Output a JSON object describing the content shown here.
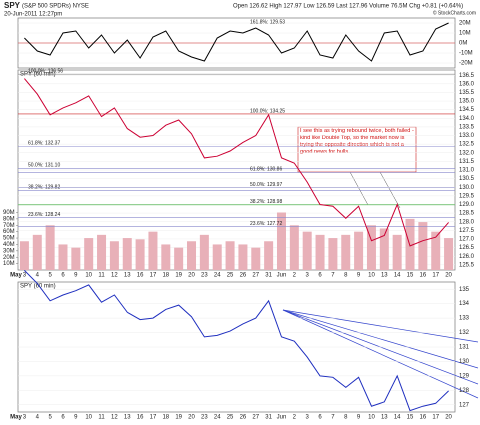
{
  "header": {
    "symbol": "SPY",
    "name": "(S&P 500 SPDRs) NYSE",
    "date": "20-Jun-2011 12:27pm",
    "quote": "Open 126.62 High 127.97 Low 126.59 Last 127.96 Volume 76.5M Chg +0.81 (+0.64%)",
    "credit": "© StockCharts.com"
  },
  "chart_data": [
    {
      "type": "line",
      "annotations": [
        {
          "label": "161.8%: 129.53"
        }
      ],
      "categories": [
        "3",
        "4",
        "5",
        "6",
        "9",
        "10",
        "11",
        "12",
        "13",
        "16",
        "17",
        "18",
        "19",
        "20",
        "23",
        "24",
        "25",
        "26",
        "27",
        "31",
        "Jun",
        "2",
        "3",
        "6",
        "7",
        "8",
        "9",
        "10",
        "13",
        "14",
        "15",
        "16",
        "17",
        "20"
      ],
      "series": [
        {
          "color": "#000000",
          "values": [
            5,
            -8,
            -12,
            10,
            12,
            -5,
            8,
            -10,
            3,
            -15,
            6,
            12,
            -8,
            -14,
            -18,
            5,
            12,
            10,
            15,
            8,
            -10,
            -5,
            12,
            -12,
            -15,
            8,
            -8,
            -18,
            10,
            12,
            -12,
            -8,
            14,
            20
          ]
        }
      ],
      "ylim": [
        -25,
        25
      ],
      "yticks": [
        {
          "value": 20,
          "label": "20M"
        },
        {
          "value": 10,
          "label": "10M"
        },
        {
          "value": 0,
          "label": "0M"
        },
        {
          "value": -10,
          "label": "-10M"
        },
        {
          "value": -20,
          "label": "-20M"
        }
      ]
    },
    {
      "type": "line",
      "title": "SPY (60 min)",
      "month": "May",
      "annotations": [
        {
          "label": "100.0%: 136.56",
          "value": 136.56,
          "color": "#888888"
        },
        {
          "label": "100.0%: 134.25",
          "value": 134.25,
          "color": "#cc2222"
        },
        {
          "label": "61.8%: 132.37",
          "value": 132.37,
          "color": "#8888cc"
        },
        {
          "label": "50.0%: 131.10",
          "value": 131.1,
          "color": "#8888cc"
        },
        {
          "label": "38.2%: 129.82",
          "value": 129.82,
          "color": "#8888cc"
        },
        {
          "label": "23.6%: 128.24",
          "value": 128.24,
          "color": "#8888cc"
        },
        {
          "label": "61.8%: 130.86",
          "value": 130.86,
          "color": "#8888cc"
        },
        {
          "label": "50.0%: 129.97",
          "value": 129.97,
          "color": "#8888cc"
        },
        {
          "label": "38.2%: 128.98",
          "value": 128.98,
          "color": "#33aa33"
        },
        {
          "label": "23.6%: 127.72",
          "value": 127.72,
          "color": "#8888cc"
        }
      ],
      "note": "I see this as trying rebound twice, both failed - kind like Double Top, so the market now is trying the opposite direction which is not a good news for bulls.",
      "categories": [
        "3",
        "4",
        "5",
        "6",
        "9",
        "10",
        "11",
        "12",
        "13",
        "16",
        "17",
        "18",
        "19",
        "20",
        "23",
        "24",
        "25",
        "26",
        "27",
        "31",
        "Jun",
        "2",
        "3",
        "6",
        "7",
        "8",
        "9",
        "10",
        "13",
        "14",
        "15",
        "16",
        "17",
        "20"
      ],
      "series": [
        {
          "type": "line",
          "color": "#cc0033",
          "values": [
            136.3,
            135.4,
            134.2,
            134.6,
            134.9,
            135.3,
            134.1,
            134.6,
            133.4,
            132.9,
            133.0,
            133.6,
            133.9,
            133.1,
            131.7,
            131.8,
            132.1,
            132.6,
            133.0,
            134.2,
            131.7,
            131.4,
            130.3,
            129.0,
            128.9,
            128.2,
            128.9,
            126.9,
            127.2,
            129.0,
            126.6,
            126.9,
            127.1,
            127.96
          ]
        },
        {
          "type": "bar",
          "axis": "y2",
          "color": "#e8b0b8",
          "values": [
            45,
            55,
            70,
            40,
            35,
            50,
            55,
            45,
            50,
            48,
            60,
            40,
            35,
            45,
            55,
            40,
            45,
            40,
            35,
            45,
            90,
            70,
            60,
            55,
            50,
            55,
            60,
            70,
            65,
            55,
            80,
            75,
            60,
            50
          ]
        }
      ],
      "ylim": [
        125.2,
        136.8
      ],
      "yticks": [
        {
          "value": 136.5,
          "label": "136.5"
        },
        {
          "value": 136,
          "label": "136.0"
        },
        {
          "value": 135.5,
          "label": "135.5"
        },
        {
          "value": 135,
          "label": "135.0"
        },
        {
          "value": 134.5,
          "label": "134.5"
        },
        {
          "value": 134,
          "label": "134.0"
        },
        {
          "value": 133.5,
          "label": "133.5"
        },
        {
          "value": 133,
          "label": "133.0"
        },
        {
          "value": 132.5,
          "label": "132.5"
        },
        {
          "value": 132,
          "label": "132.0"
        },
        {
          "value": 131.5,
          "label": "131.5"
        },
        {
          "value": 131,
          "label": "131.0"
        },
        {
          "value": 130.5,
          "label": "130.5"
        },
        {
          "value": 130,
          "label": "130.0"
        },
        {
          "value": 129.5,
          "label": "129.5"
        },
        {
          "value": 129,
          "label": "129.0"
        },
        {
          "value": 128.5,
          "label": "128.5"
        },
        {
          "value": 128,
          "label": "128.0"
        },
        {
          "value": 127.5,
          "label": "127.5"
        },
        {
          "value": 127,
          "label": "127.0"
        },
        {
          "value": 126.5,
          "label": "126.5"
        },
        {
          "value": 126,
          "label": "126.0"
        },
        {
          "value": 125.5,
          "label": "125.5"
        }
      ],
      "y2lim": [
        0,
        313
      ],
      "y2ticks": [
        {
          "value": 90,
          "label": "90M"
        },
        {
          "value": 80,
          "label": "80M"
        },
        {
          "value": 70,
          "label": "70M"
        },
        {
          "value": 60,
          "label": "60M"
        },
        {
          "value": 50,
          "label": "50M"
        },
        {
          "value": 40,
          "label": "40M"
        },
        {
          "value": 30,
          "label": "30M"
        },
        {
          "value": 20,
          "label": "20M"
        },
        {
          "value": 10,
          "label": "10M"
        }
      ]
    },
    {
      "type": "line",
      "title": "SPY (60 min)",
      "month": "May",
      "categories": [
        "3",
        "4",
        "5",
        "6",
        "9",
        "10",
        "11",
        "12",
        "13",
        "16",
        "17",
        "18",
        "19",
        "20",
        "23",
        "24",
        "25",
        "26",
        "27",
        "31",
        "Jun",
        "2",
        "3",
        "6",
        "7",
        "8",
        "9",
        "10",
        "13",
        "14",
        "15",
        "16",
        "17",
        "20"
      ],
      "series": [
        {
          "color": "#1f2fbf",
          "values": [
            136.3,
            135.4,
            134.2,
            134.6,
            134.9,
            135.3,
            134.1,
            134.6,
            133.4,
            132.9,
            133.0,
            133.6,
            133.9,
            133.1,
            131.7,
            131.8,
            132.1,
            132.6,
            133.0,
            134.2,
            131.7,
            131.4,
            130.3,
            129.0,
            128.9,
            128.2,
            128.9,
            126.9,
            127.2,
            129.0,
            126.6,
            126.9,
            127.1,
            127.96
          ]
        }
      ],
      "ylim": [
        126.5,
        135.5
      ],
      "yticks": [
        135,
        134,
        133,
        132,
        131,
        130,
        129,
        128,
        127
      ]
    }
  ]
}
